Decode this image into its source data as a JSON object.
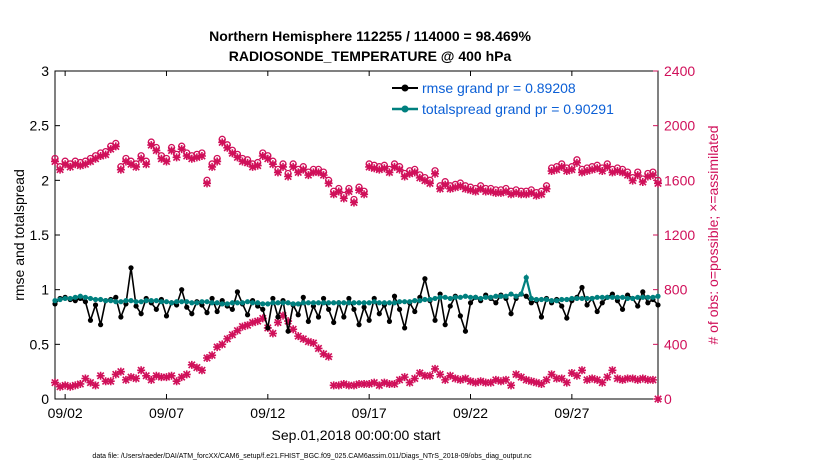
{
  "chart_data": {
    "type": "line",
    "title": "Northern Hemisphere 112255 / 114000 = 98.469%",
    "subtitle": "RADIOSONDE_TEMPERATURE @ 400 hPa",
    "xlabel": "Sep.01,2018 00:00:00 start",
    "ylabel": "rmse and totalspread",
    "y2label": "# of obs: o=possible; ×=assimilated",
    "footnote": "data file: /Users/raeder/DAI/ATM_forcXX/CAM6_setup/f.e21.FHIST_BGC.f09_025.CAM6assim.011/Diags_NTrS_2018-09/obs_diag_output.nc",
    "xlim": [
      1.5,
      31.25
    ],
    "ylim": [
      0,
      3
    ],
    "y2lim": [
      0,
      2400
    ],
    "xticks": [
      2,
      7,
      12,
      17,
      22,
      27
    ],
    "xtick_labels": [
      "09/02",
      "09/07",
      "09/12",
      "09/17",
      "09/22",
      "09/27"
    ],
    "yticks": [
      "0",
      "0.5",
      "1",
      "1.5",
      "2",
      "2.5",
      "3"
    ],
    "y2ticks": [
      "0",
      "400",
      "800",
      "1200",
      "1600",
      "2000",
      "2400"
    ],
    "legend_position": "top-right",
    "colors": {
      "rmse": "#000000",
      "spread": "#00807f",
      "obs": "#d0105a",
      "legend_text": "#0b5fd6"
    },
    "x": [
      1.5,
      1.75,
      2.0,
      2.25,
      2.5,
      2.75,
      3.0,
      3.25,
      3.5,
      3.75,
      4.0,
      4.25,
      4.5,
      4.75,
      5.0,
      5.25,
      5.5,
      5.75,
      6.0,
      6.25,
      6.5,
      6.75,
      7.0,
      7.25,
      7.5,
      7.75,
      8.0,
      8.25,
      8.5,
      8.75,
      9.0,
      9.25,
      9.5,
      9.75,
      10.0,
      10.25,
      10.5,
      10.75,
      11.0,
      11.25,
      11.5,
      11.75,
      12.0,
      12.25,
      12.5,
      12.75,
      13.0,
      13.25,
      13.5,
      13.75,
      14.0,
      14.25,
      14.5,
      14.75,
      15.0,
      15.25,
      15.5,
      15.75,
      16.0,
      16.25,
      16.5,
      16.75,
      17.0,
      17.25,
      17.5,
      17.75,
      18.0,
      18.25,
      18.5,
      18.75,
      19.0,
      19.25,
      19.5,
      19.75,
      20.0,
      20.25,
      20.5,
      20.75,
      21.0,
      21.25,
      21.5,
      21.75,
      22.0,
      22.25,
      22.5,
      22.75,
      23.0,
      23.25,
      23.5,
      23.75,
      24.0,
      24.25,
      24.5,
      24.75,
      25.0,
      25.25,
      25.5,
      25.75,
      26.0,
      26.25,
      26.5,
      26.75,
      27.0,
      27.25,
      27.5,
      27.75,
      28.0,
      28.25,
      28.5,
      28.75,
      29.0,
      29.25,
      29.5,
      29.75,
      30.0,
      30.25,
      30.5,
      30.75,
      31.0,
      31.25
    ],
    "series": [
      {
        "name": "rmse grand pr = 0.89208",
        "values": [
          0.87,
          0.92,
          0.93,
          0.91,
          0.9,
          0.92,
          0.89,
          0.72,
          0.86,
          0.68,
          0.9,
          0.91,
          0.93,
          0.75,
          0.87,
          1.2,
          0.85,
          0.78,
          0.92,
          0.88,
          0.82,
          0.91,
          0.76,
          0.88,
          0.86,
          1.0,
          0.84,
          0.78,
          0.89,
          0.86,
          0.79,
          0.92,
          0.8,
          0.9,
          0.85,
          0.82,
          0.98,
          0.87,
          0.77,
          0.9,
          0.85,
          0.82,
          0.65,
          0.92,
          0.75,
          0.9,
          0.62,
          0.86,
          0.77,
          0.93,
          0.71,
          0.85,
          0.75,
          0.92,
          0.82,
          0.7,
          0.88,
          0.75,
          0.92,
          0.82,
          0.68,
          0.84,
          0.72,
          0.92,
          0.78,
          0.86,
          0.71,
          0.94,
          0.82,
          0.65,
          0.88,
          0.8,
          0.93,
          1.1,
          0.9,
          0.72,
          0.96,
          0.68,
          0.85,
          0.94,
          0.76,
          0.62,
          0.88,
          0.93,
          0.9,
          0.95,
          0.92,
          0.88,
          0.95,
          0.92,
          0.78,
          0.92,
          0.96,
          0.94,
          0.88,
          0.9,
          0.75,
          0.92,
          0.88,
          0.91,
          0.85,
          0.74,
          0.9,
          0.93,
          1.02,
          0.86,
          0.92,
          0.8,
          0.88,
          0.93,
          0.96,
          0.9,
          0.82,
          0.95,
          0.92,
          0.85,
          0.98,
          0.88,
          0.91,
          0.86
        ]
      },
      {
        "name": "totalspread grand pr = 0.90291",
        "values": [
          0.9,
          0.91,
          0.92,
          0.92,
          0.93,
          0.94,
          0.93,
          0.92,
          0.91,
          0.91,
          0.9,
          0.9,
          0.89,
          0.89,
          0.9,
          0.9,
          0.89,
          0.89,
          0.9,
          0.9,
          0.9,
          0.89,
          0.89,
          0.88,
          0.89,
          0.89,
          0.89,
          0.88,
          0.88,
          0.89,
          0.89,
          0.88,
          0.88,
          0.87,
          0.87,
          0.88,
          0.88,
          0.88,
          0.89,
          0.88,
          0.88,
          0.87,
          0.87,
          0.88,
          0.88,
          0.88,
          0.88,
          0.87,
          0.87,
          0.88,
          0.88,
          0.88,
          0.88,
          0.88,
          0.88,
          0.88,
          0.88,
          0.88,
          0.88,
          0.88,
          0.88,
          0.88,
          0.88,
          0.89,
          0.88,
          0.88,
          0.88,
          0.88,
          0.89,
          0.89,
          0.89,
          0.9,
          0.9,
          0.91,
          0.91,
          0.92,
          0.93,
          0.93,
          0.92,
          0.93,
          0.93,
          0.94,
          0.93,
          0.93,
          0.92,
          0.93,
          0.93,
          0.94,
          0.94,
          0.94,
          0.96,
          0.94,
          0.96,
          1.11,
          0.92,
          0.91,
          0.91,
          0.91,
          0.9,
          0.9,
          0.91,
          0.91,
          0.92,
          0.92,
          0.92,
          0.92,
          0.92,
          0.93,
          0.93,
          0.93,
          0.93,
          0.93,
          0.93,
          0.92,
          0.92,
          0.93,
          0.93,
          0.93,
          0.93,
          0.94
        ]
      }
    ],
    "obs_x": [
      1.5,
      1.75,
      2.0,
      2.25,
      2.5,
      2.75,
      3.0,
      3.25,
      3.5,
      3.75,
      4.0,
      4.25,
      4.5,
      4.75,
      5.0,
      5.25,
      5.5,
      5.75,
      6.0,
      6.25,
      6.5,
      6.75,
      7.0,
      7.25,
      7.5,
      7.75,
      8.0,
      8.25,
      8.5,
      8.75,
      9.0,
      9.25,
      9.5,
      9.75,
      10.0,
      10.25,
      10.5,
      10.75,
      11.0,
      11.25,
      11.5,
      11.75,
      12.0,
      12.25,
      12.5,
      12.75,
      13.0,
      13.25,
      13.5,
      13.75,
      14.0,
      14.25,
      14.5,
      14.75,
      15.0,
      15.25,
      15.5,
      15.75,
      16.0,
      16.25,
      16.5,
      16.75,
      17.0,
      17.25,
      17.5,
      17.75,
      18.0,
      18.25,
      18.5,
      18.75,
      19.0,
      19.25,
      19.5,
      19.75,
      20.0,
      20.25,
      20.5,
      20.75,
      21.0,
      21.25,
      21.5,
      21.75,
      22.0,
      22.25,
      22.5,
      22.75,
      23.0,
      23.25,
      23.5,
      23.75,
      24.0,
      24.25,
      24.5,
      24.75,
      25.0,
      25.25,
      25.5,
      25.75,
      26.0,
      26.25,
      26.5,
      26.75,
      27.0,
      27.25,
      27.5,
      27.75,
      28.0,
      28.25,
      28.5,
      28.75,
      29.0,
      29.25,
      29.5,
      29.75,
      30.0,
      30.25,
      30.5,
      30.75,
      31.0,
      31.25
    ],
    "obs_possible": [
      1760,
      1700,
      1740,
      1720,
      1740,
      1730,
      1740,
      1760,
      1780,
      1800,
      1810,
      1850,
      1870,
      1700,
      1760,
      1740,
      1720,
      1780,
      1740,
      1880,
      1840,
      1780,
      1760,
      1840,
      1790,
      1850,
      1800,
      1780,
      1790,
      1800,
      1600,
      1720,
      1760,
      1900,
      1860,
      1820,
      1790,
      1760,
      1750,
      1720,
      1730,
      1800,
      1780,
      1740,
      1680,
      1720,
      1650,
      1720,
      1680,
      1700,
      1660,
      1680,
      1680,
      1660,
      1600,
      1520,
      1540,
      1490,
      1540,
      1460,
      1550,
      1520,
      1720,
      1710,
      1700,
      1710,
      1680,
      1720,
      1700,
      1650,
      1670,
      1680,
      1640,
      1620,
      1600,
      1670,
      1560,
      1590,
      1560,
      1570,
      1580,
      1560,
      1550,
      1540,
      1560,
      1540,
      1540,
      1530,
      1530,
      1540,
      1520,
      1530,
      1520,
      1520,
      1530,
      1510,
      1520,
      1560,
      1690,
      1700,
      1720,
      1690,
      1700,
      1750,
      1680,
      1690,
      1700,
      1710,
      1690,
      1720,
      1680,
      1690,
      1680,
      1660,
      1620,
      1660,
      1610,
      1650,
      1660,
      1600
    ],
    "obs_assimilated": [
      120,
      90,
      100,
      90,
      100,
      110,
      150,
      120,
      100,
      170,
      130,
      130,
      180,
      200,
      140,
      160,
      150,
      210,
      170,
      140,
      170,
      160,
      160,
      170,
      130,
      160,
      180,
      250,
      230,
      210,
      300,
      320,
      380,
      400,
      440,
      470,
      500,
      530,
      540,
      560,
      570,
      590,
      520,
      480,
      560,
      610,
      570,
      510,
      460,
      440,
      420,
      410,
      370,
      330,
      310,
      100,
      100,
      110,
      100,
      100,
      110,
      110,
      110,
      120,
      100,
      120,
      110,
      110,
      140,
      160,
      120,
      150,
      190,
      170,
      170,
      220,
      180,
      140,
      170,
      150,
      140,
      150,
      130,
      120,
      130,
      120,
      120,
      140,
      130,
      140,
      100,
      180,
      160,
      140,
      130,
      120,
      110,
      140,
      180,
      150,
      150,
      120,
      190,
      170,
      210,
      140,
      150,
      140,
      120,
      160,
      210,
      150,
      140,
      150,
      150,
      140,
      150,
      140,
      140,
      0
    ]
  }
}
